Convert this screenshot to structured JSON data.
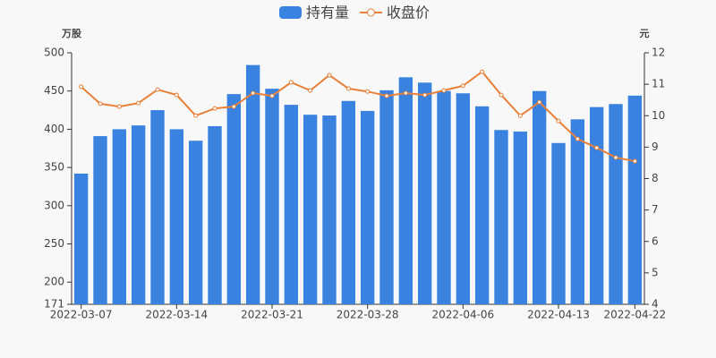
{
  "chart_data": {
    "type": "bar-line",
    "categories": [
      "2022-03-07",
      null,
      null,
      null,
      null,
      "2022-03-14",
      null,
      null,
      null,
      null,
      "2022-03-21",
      null,
      null,
      null,
      null,
      "2022-03-28",
      null,
      null,
      null,
      null,
      "2022-04-06",
      null,
      null,
      null,
      null,
      "2022-04-13",
      null,
      null,
      null,
      "2022-04-22"
    ],
    "y_label": "万股",
    "y2_label": "元",
    "series": [
      {
        "name": "持有量",
        "type": "bar",
        "color": "#3a82e0",
        "values": [
          342,
          391,
          400,
          405,
          425,
          400,
          385,
          404,
          446,
          484,
          453,
          432,
          419,
          418,
          437,
          424,
          451,
          468,
          461,
          450,
          447,
          430,
          399,
          397,
          450,
          382,
          413,
          429,
          433,
          444
        ]
      },
      {
        "name": "收盘价",
        "type": "line",
        "axis": "y2",
        "color": "#e8803a",
        "values": [
          10.92,
          10.38,
          10.29,
          10.4,
          10.83,
          10.66,
          10.0,
          10.23,
          10.29,
          10.72,
          10.63,
          11.06,
          10.8,
          11.29,
          10.86,
          10.77,
          10.63,
          10.72,
          10.66,
          10.8,
          10.95,
          11.4,
          10.66,
          10.0,
          10.43,
          9.83,
          9.26,
          8.98,
          8.67,
          8.55
        ]
      }
    ],
    "ylim": [
      171,
      500
    ],
    "yticks": [
      171,
      200,
      250,
      300,
      350,
      400,
      450,
      500
    ],
    "y2lim": [
      4,
      12
    ],
    "y2ticks": [
      4,
      5,
      6,
      7,
      8,
      9,
      10,
      11,
      12
    ]
  }
}
